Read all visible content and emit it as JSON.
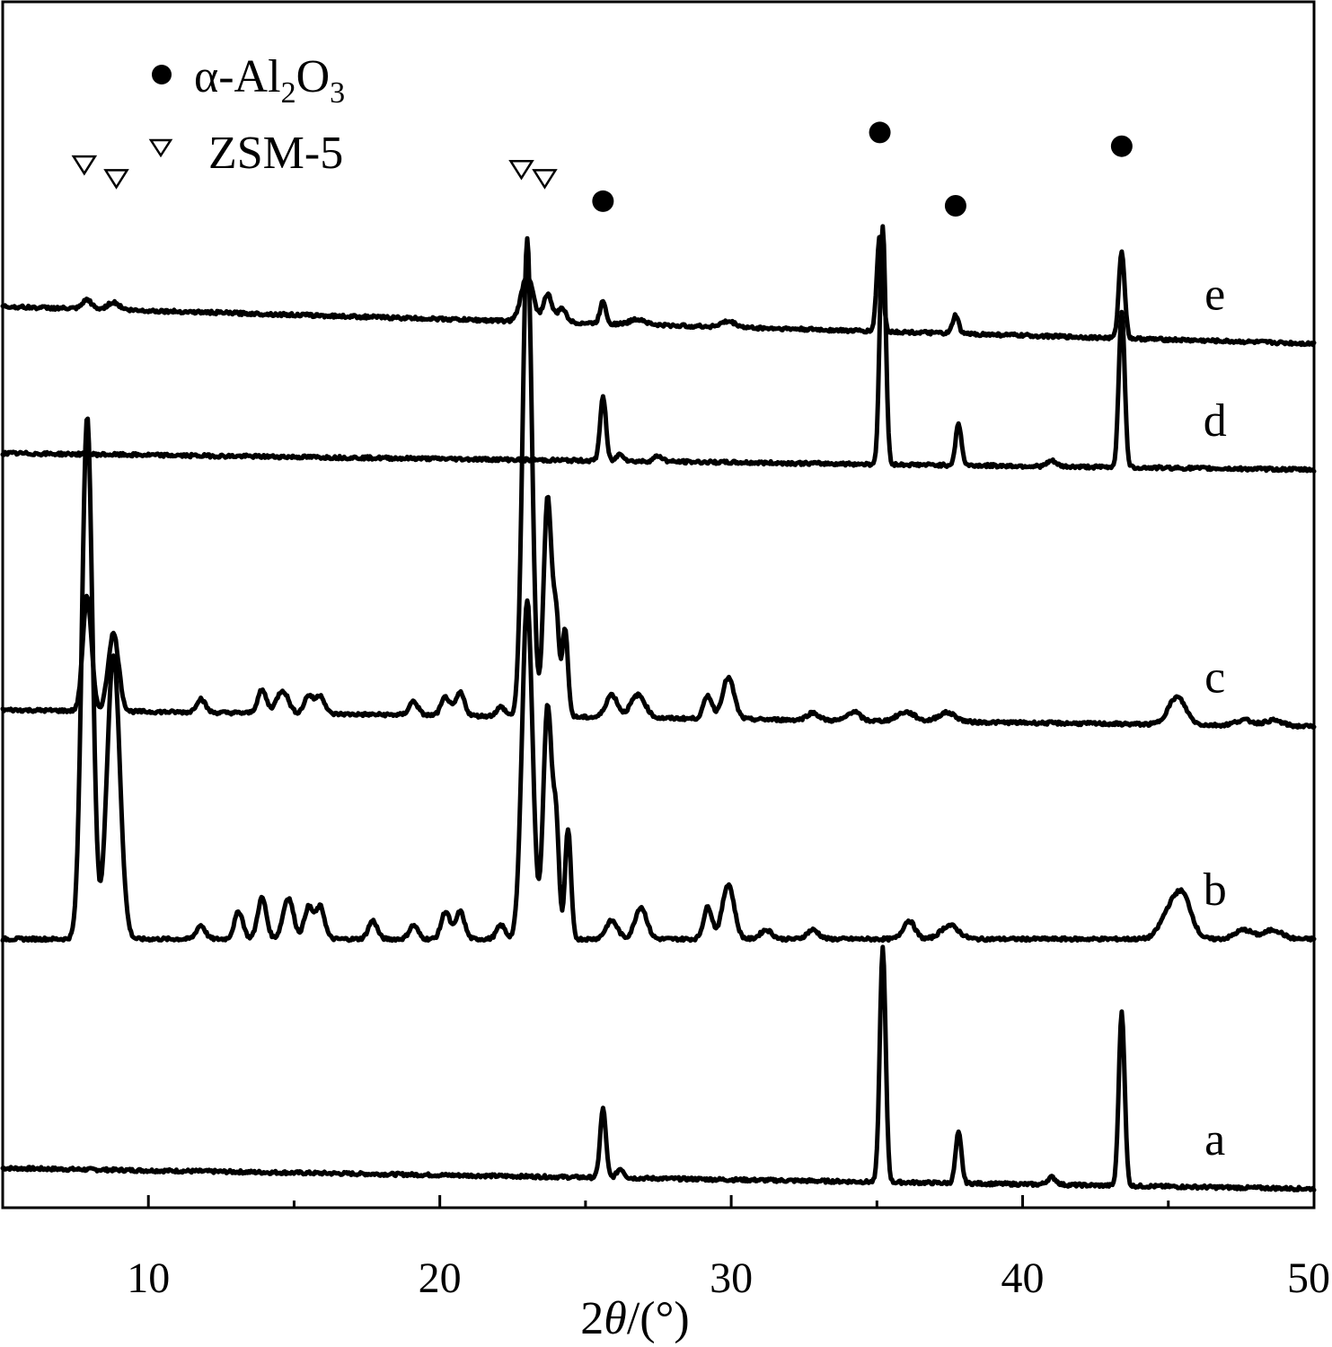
{
  "chart_data": {
    "type": "line",
    "xlabel_prefix": "2",
    "xlabel_symbol": "θ",
    "xlabel_unit": "/(°)",
    "ylabel": "",
    "xlim": [
      5,
      50
    ],
    "x_ticks": [
      10,
      20,
      30,
      40,
      50
    ],
    "y_ticks": [],
    "grid": false,
    "legend": {
      "position": "top-left",
      "entries": [
        {
          "marker": "filled-circle",
          "label": "α-Al",
          "sub1": "2",
          "mid": "O",
          "sub2": "3"
        },
        {
          "marker": "open-triangle-down",
          "label": "ZSM-5"
        }
      ]
    },
    "series": [
      {
        "name": "a",
        "offset": 0,
        "slope": -0.25,
        "peaks": [
          [
            25.6,
            7.5,
            0.1
          ],
          [
            26.2,
            1.0,
            0.12
          ],
          [
            35.2,
            25.5,
            0.1
          ],
          [
            37.8,
            5.5,
            0.1
          ],
          [
            41.0,
            0.8,
            0.15
          ],
          [
            43.4,
            19.0,
            0.1
          ]
        ]
      },
      {
        "name": "b",
        "offset": 25,
        "slope": 0.0,
        "peaks": [
          [
            7.9,
            57.0,
            0.18
          ],
          [
            8.8,
            31.0,
            0.22
          ],
          [
            11.8,
            1.5,
            0.15
          ],
          [
            13.1,
            3.0,
            0.15
          ],
          [
            13.9,
            4.5,
            0.15
          ],
          [
            14.8,
            4.5,
            0.18
          ],
          [
            15.5,
            3.5,
            0.15
          ],
          [
            15.9,
            3.5,
            0.15
          ],
          [
            17.7,
            2.0,
            0.15
          ],
          [
            19.1,
            1.5,
            0.15
          ],
          [
            20.2,
            3.0,
            0.15
          ],
          [
            20.7,
            3.0,
            0.15
          ],
          [
            22.1,
            1.5,
            0.15
          ],
          [
            23.0,
            37.0,
            0.18
          ],
          [
            23.7,
            25.5,
            0.15
          ],
          [
            24.0,
            11.0,
            0.1
          ],
          [
            24.4,
            12.0,
            0.1
          ],
          [
            25.9,
            2.0,
            0.2
          ],
          [
            26.9,
            3.5,
            0.2
          ],
          [
            29.2,
            3.5,
            0.15
          ],
          [
            29.9,
            6.0,
            0.2
          ],
          [
            31.2,
            1.0,
            0.2
          ],
          [
            32.8,
            1.0,
            0.2
          ],
          [
            36.1,
            2.0,
            0.2
          ],
          [
            37.5,
            1.5,
            0.3
          ],
          [
            45.0,
            2.5,
            0.3
          ],
          [
            45.5,
            4.5,
            0.3
          ],
          [
            47.6,
            1.0,
            0.3
          ],
          [
            48.6,
            1.0,
            0.3
          ]
        ]
      },
      {
        "name": "c",
        "offset": 50,
        "slope": -0.2,
        "peaks": [
          [
            7.9,
            12.5,
            0.15
          ],
          [
            8.8,
            8.5,
            0.18
          ],
          [
            11.8,
            1.5,
            0.15
          ],
          [
            13.9,
            2.5,
            0.15
          ],
          [
            14.6,
            2.5,
            0.2
          ],
          [
            15.5,
            2.0,
            0.15
          ],
          [
            15.9,
            2.0,
            0.15
          ],
          [
            19.1,
            1.5,
            0.15
          ],
          [
            20.2,
            2.0,
            0.15
          ],
          [
            20.7,
            2.5,
            0.15
          ],
          [
            22.1,
            1.0,
            0.15
          ],
          [
            23.0,
            52.0,
            0.16
          ],
          [
            23.7,
            24.0,
            0.14
          ],
          [
            24.0,
            10.0,
            0.1
          ],
          [
            24.3,
            9.5,
            0.1
          ],
          [
            25.9,
            2.5,
            0.2
          ],
          [
            26.8,
            2.5,
            0.25
          ],
          [
            29.2,
            2.5,
            0.15
          ],
          [
            29.9,
            4.5,
            0.2
          ],
          [
            32.8,
            0.8,
            0.2
          ],
          [
            34.2,
            1.0,
            0.2
          ],
          [
            36.0,
            1.0,
            0.3
          ],
          [
            37.4,
            1.0,
            0.3
          ],
          [
            45.3,
            3.0,
            0.3
          ],
          [
            47.6,
            0.6,
            0.3
          ],
          [
            48.6,
            0.6,
            0.3
          ]
        ]
      },
      {
        "name": "d",
        "offset": 78,
        "slope": -0.2,
        "peaks": [
          [
            25.6,
            7.0,
            0.1
          ],
          [
            26.2,
            0.8,
            0.12
          ],
          [
            27.5,
            0.6,
            0.15
          ],
          [
            35.2,
            26.0,
            0.1
          ],
          [
            37.8,
            4.5,
            0.1
          ],
          [
            41.0,
            0.6,
            0.15
          ],
          [
            43.4,
            17.0,
            0.1
          ]
        ]
      },
      {
        "name": "e",
        "offset": 94,
        "slope": -0.45,
        "peaks": [
          [
            7.9,
            1.0,
            0.15
          ],
          [
            8.8,
            0.8,
            0.2
          ],
          [
            23.0,
            5.0,
            0.2
          ],
          [
            23.7,
            3.0,
            0.15
          ],
          [
            24.2,
            1.5,
            0.15
          ],
          [
            25.6,
            2.5,
            0.1
          ],
          [
            26.8,
            0.6,
            0.25
          ],
          [
            29.9,
            0.6,
            0.25
          ],
          [
            35.1,
            10.5,
            0.1
          ],
          [
            37.7,
            2.0,
            0.1
          ],
          [
            43.4,
            9.5,
            0.1
          ]
        ]
      }
    ],
    "markers": [
      {
        "symbol": "open-triangle-down",
        "x": 7.8,
        "y": 109.5
      },
      {
        "symbol": "open-triangle-down",
        "x": 8.9,
        "y": 108.0
      },
      {
        "symbol": "open-triangle-down",
        "x": 22.8,
        "y": 109.0
      },
      {
        "symbol": "open-triangle-down",
        "x": 23.6,
        "y": 108.0
      },
      {
        "symbol": "filled-circle",
        "x": 25.6,
        "y": 105.5
      },
      {
        "symbol": "filled-circle",
        "x": 35.1,
        "y": 113.0
      },
      {
        "symbol": "filled-circle",
        "x": 37.7,
        "y": 105.0
      },
      {
        "symbol": "filled-circle",
        "x": 43.4,
        "y": 111.5
      }
    ]
  }
}
